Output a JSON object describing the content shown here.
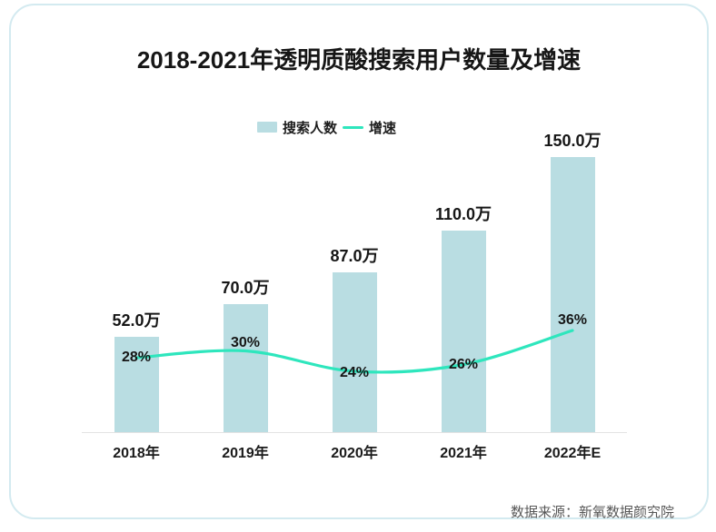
{
  "chart_data": {
    "type": "bar+line",
    "title": "2018-2021年透明质酸搜索用户数量及增速",
    "categories": [
      "2018年",
      "2019年",
      "2020年",
      "2021年",
      "2022年E"
    ],
    "series": [
      {
        "name": "搜索人数",
        "type": "bar",
        "unit": "万",
        "values": [
          52.0,
          70.0,
          87.0,
          110.0,
          150.0
        ],
        "data_labels": [
          "52.0万",
          "70.0万",
          "87.0万",
          "110.0万",
          "150.0万"
        ],
        "color": "#b9dde2"
      },
      {
        "name": "增速",
        "type": "line",
        "unit": "%",
        "values": [
          28,
          30,
          24,
          26,
          36
        ],
        "data_labels": [
          "28%",
          "30%",
          "24%",
          "26%",
          "36%"
        ],
        "color": "#2ee6bd",
        "smooth": true
      }
    ],
    "legend_position": "top",
    "grid": false,
    "xlabel": "",
    "ylabel": "",
    "bar_axis_range": [
      0,
      163
    ],
    "line_axis_range_pct": [
      20,
      40
    ]
  },
  "footer": {
    "source": "数据来源：新氧数据颜究院"
  },
  "colors": {
    "card_border": "#d3eaf0",
    "axis_line": "#e3e3e3",
    "label_text": "#161616",
    "source_text": "#575757"
  }
}
